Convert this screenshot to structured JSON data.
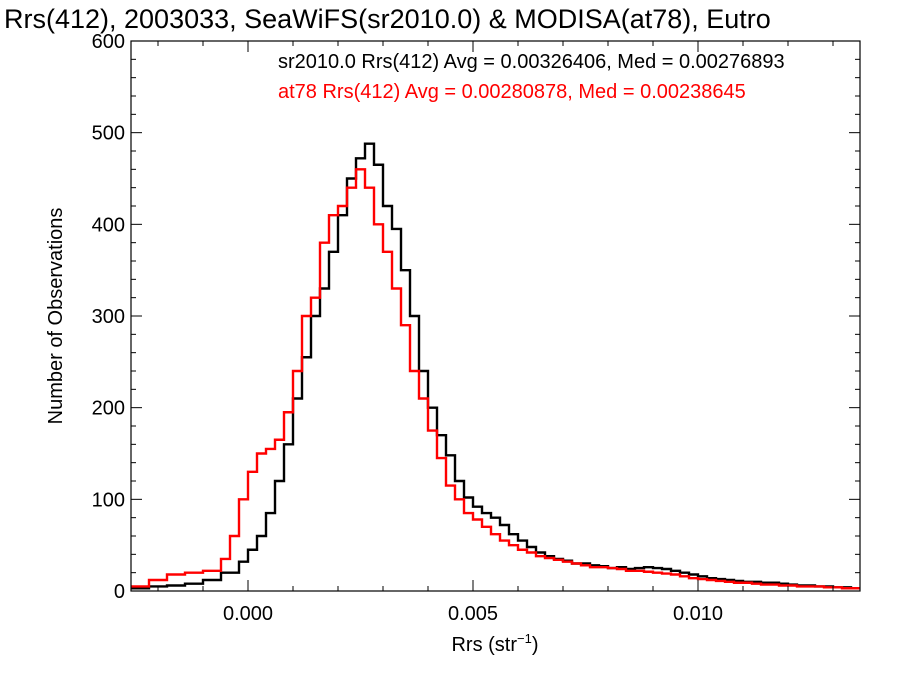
{
  "chart_data": {
    "type": "line",
    "title": "Rrs(412), 2003033, SeaWiFS(sr2010.0) & MODISA(at78), Eutro",
    "xlabel": "Rrs (str",
    "xlabel_sup": "−1",
    "xlabel_close": ")",
    "ylabel": "Number of Observations",
    "xlim": [
      -0.0026,
      0.0136
    ],
    "ylim": [
      0,
      600
    ],
    "xticks": [
      {
        "value": 0.0,
        "label": "0.000"
      },
      {
        "value": 0.005,
        "label": "0.005"
      },
      {
        "value": 0.01,
        "label": "0.010"
      }
    ],
    "yticks": [
      {
        "value": 0,
        "label": "0"
      },
      {
        "value": 100,
        "label": "100"
      },
      {
        "value": 200,
        "label": "200"
      },
      {
        "value": 300,
        "label": "300"
      },
      {
        "value": 400,
        "label": "400"
      },
      {
        "value": 500,
        "label": "500"
      },
      {
        "value": 600,
        "label": "600"
      }
    ],
    "grid": false,
    "legend_position": "top-right",
    "series": [
      {
        "name": "sr2010.0 Rrs(412) Avg = 0.00326406, Med = 0.00276893",
        "color": "#000000",
        "points": [
          [
            -0.0026,
            3
          ],
          [
            -0.0022,
            5
          ],
          [
            -0.0018,
            6
          ],
          [
            -0.0014,
            8
          ],
          [
            -0.001,
            12
          ],
          [
            -0.0006,
            20
          ],
          [
            -0.0002,
            32
          ],
          [
            0.0,
            45
          ],
          [
            0.0002,
            60
          ],
          [
            0.0004,
            85
          ],
          [
            0.0006,
            120
          ],
          [
            0.0008,
            160
          ],
          [
            0.001,
            210
          ],
          [
            0.0012,
            255
          ],
          [
            0.0014,
            300
          ],
          [
            0.0016,
            330
          ],
          [
            0.0018,
            370
          ],
          [
            0.002,
            410
          ],
          [
            0.0022,
            450
          ],
          [
            0.0024,
            472
          ],
          [
            0.0026,
            488
          ],
          [
            0.0028,
            465
          ],
          [
            0.003,
            420
          ],
          [
            0.0032,
            395
          ],
          [
            0.0034,
            350
          ],
          [
            0.0036,
            300
          ],
          [
            0.0038,
            240
          ],
          [
            0.004,
            200
          ],
          [
            0.0042,
            170
          ],
          [
            0.0044,
            148
          ],
          [
            0.0046,
            120
          ],
          [
            0.0048,
            102
          ],
          [
            0.005,
            92
          ],
          [
            0.0052,
            85
          ],
          [
            0.0054,
            80
          ],
          [
            0.0056,
            72
          ],
          [
            0.0058,
            62
          ],
          [
            0.006,
            55
          ],
          [
            0.0062,
            48
          ],
          [
            0.0064,
            42
          ],
          [
            0.0066,
            38
          ],
          [
            0.0068,
            35
          ],
          [
            0.007,
            33
          ],
          [
            0.0072,
            30
          ],
          [
            0.0074,
            30
          ],
          [
            0.0076,
            28
          ],
          [
            0.0078,
            27
          ],
          [
            0.008,
            25
          ],
          [
            0.0082,
            26
          ],
          [
            0.0084,
            24
          ],
          [
            0.0086,
            25
          ],
          [
            0.0088,
            26
          ],
          [
            0.009,
            25
          ],
          [
            0.0092,
            24
          ],
          [
            0.0094,
            22
          ],
          [
            0.0096,
            20
          ],
          [
            0.0098,
            18
          ],
          [
            0.01,
            16
          ],
          [
            0.0102,
            14
          ],
          [
            0.0104,
            13
          ],
          [
            0.0106,
            12
          ],
          [
            0.0108,
            11
          ],
          [
            0.011,
            10
          ],
          [
            0.0112,
            10
          ],
          [
            0.0114,
            9
          ],
          [
            0.0116,
            9
          ],
          [
            0.0118,
            8
          ],
          [
            0.012,
            7
          ],
          [
            0.0122,
            6
          ],
          [
            0.0124,
            6
          ],
          [
            0.0126,
            5
          ],
          [
            0.0128,
            5
          ],
          [
            0.013,
            4
          ],
          [
            0.0132,
            4
          ],
          [
            0.0134,
            3
          ],
          [
            0.0136,
            3
          ]
        ]
      },
      {
        "name": "at78 Rrs(412) Avg = 0.00280878, Med = 0.00238645",
        "color": "#ff0000",
        "points": [
          [
            -0.0026,
            5
          ],
          [
            -0.0022,
            12
          ],
          [
            -0.0018,
            18
          ],
          [
            -0.0014,
            20
          ],
          [
            -0.001,
            22
          ],
          [
            -0.0006,
            35
          ],
          [
            -0.0004,
            60
          ],
          [
            -0.0002,
            100
          ],
          [
            0.0,
            130
          ],
          [
            0.0002,
            150
          ],
          [
            0.0004,
            155
          ],
          [
            0.0006,
            165
          ],
          [
            0.0008,
            195
          ],
          [
            0.001,
            240
          ],
          [
            0.0012,
            300
          ],
          [
            0.0014,
            320
          ],
          [
            0.0016,
            380
          ],
          [
            0.0018,
            410
          ],
          [
            0.002,
            420
          ],
          [
            0.0022,
            440
          ],
          [
            0.0024,
            460
          ],
          [
            0.0026,
            440
          ],
          [
            0.0028,
            400
          ],
          [
            0.003,
            370
          ],
          [
            0.0032,
            330
          ],
          [
            0.0034,
            290
          ],
          [
            0.0036,
            240
          ],
          [
            0.0038,
            210
          ],
          [
            0.004,
            175
          ],
          [
            0.0042,
            145
          ],
          [
            0.0044,
            115
          ],
          [
            0.0046,
            100
          ],
          [
            0.0048,
            85
          ],
          [
            0.005,
            78
          ],
          [
            0.0052,
            70
          ],
          [
            0.0054,
            62
          ],
          [
            0.0056,
            55
          ],
          [
            0.0058,
            50
          ],
          [
            0.006,
            45
          ],
          [
            0.0062,
            42
          ],
          [
            0.0064,
            38
          ],
          [
            0.0066,
            36
          ],
          [
            0.0068,
            34
          ],
          [
            0.007,
            32
          ],
          [
            0.0072,
            30
          ],
          [
            0.0074,
            28
          ],
          [
            0.0076,
            26
          ],
          [
            0.0078,
            26
          ],
          [
            0.008,
            25
          ],
          [
            0.0082,
            24
          ],
          [
            0.0084,
            22
          ],
          [
            0.0086,
            22
          ],
          [
            0.0088,
            21
          ],
          [
            0.009,
            20
          ],
          [
            0.0092,
            19
          ],
          [
            0.0094,
            18
          ],
          [
            0.0096,
            16
          ],
          [
            0.0098,
            14
          ],
          [
            0.01,
            13
          ],
          [
            0.0102,
            12
          ],
          [
            0.0104,
            11
          ],
          [
            0.0106,
            10
          ],
          [
            0.0108,
            9
          ],
          [
            0.011,
            9
          ],
          [
            0.0112,
            8
          ],
          [
            0.0114,
            7
          ],
          [
            0.0116,
            7
          ],
          [
            0.0118,
            6
          ],
          [
            0.012,
            6
          ],
          [
            0.0122,
            5
          ],
          [
            0.0124,
            5
          ],
          [
            0.0126,
            5
          ],
          [
            0.0128,
            4
          ],
          [
            0.013,
            4
          ],
          [
            0.0132,
            3
          ],
          [
            0.0134,
            3
          ],
          [
            0.0136,
            3
          ]
        ]
      }
    ]
  }
}
